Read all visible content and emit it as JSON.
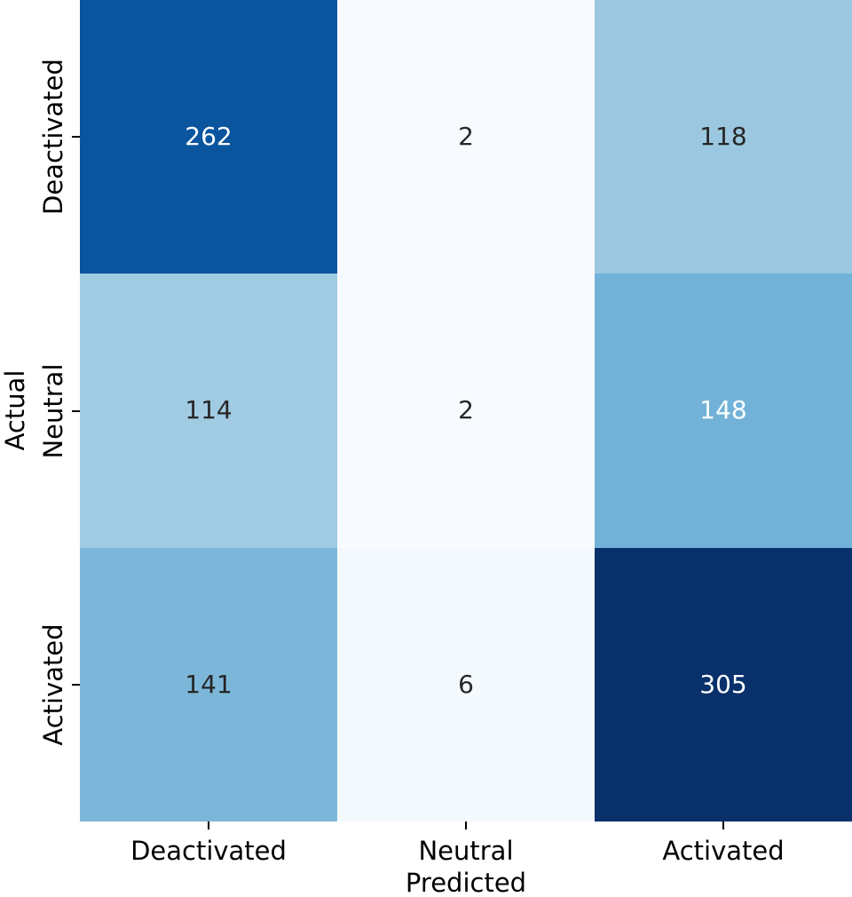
{
  "chart_data": {
    "type": "heatmap",
    "title": "",
    "xlabel": "Predicted",
    "ylabel": "Actual",
    "x_categories": [
      "Deactivated",
      "Neutral",
      "Activated"
    ],
    "y_categories": [
      "Deactivated",
      "Neutral",
      "Activated"
    ],
    "values": [
      [
        262,
        2,
        118
      ],
      [
        114,
        2,
        148
      ],
      [
        141,
        6,
        305
      ]
    ],
    "colormap": "Blues",
    "vmin": 2,
    "vmax": 305,
    "cell_colors": [
      [
        "#0b559f",
        "#f7fbff",
        "#9bc8e0"
      ],
      [
        "#a0cbe2",
        "#f7fbff",
        "#72b2d8"
      ],
      [
        "#7cb7da",
        "#f4f9fe",
        "#08306b"
      ]
    ],
    "text_colors": [
      [
        "#ffffff",
        "#262626",
        "#262626"
      ],
      [
        "#262626",
        "#262626",
        "#ffffff"
      ],
      [
        "#262626",
        "#262626",
        "#ffffff"
      ]
    ],
    "grid": false,
    "legend": false,
    "annotations_shown": true
  }
}
